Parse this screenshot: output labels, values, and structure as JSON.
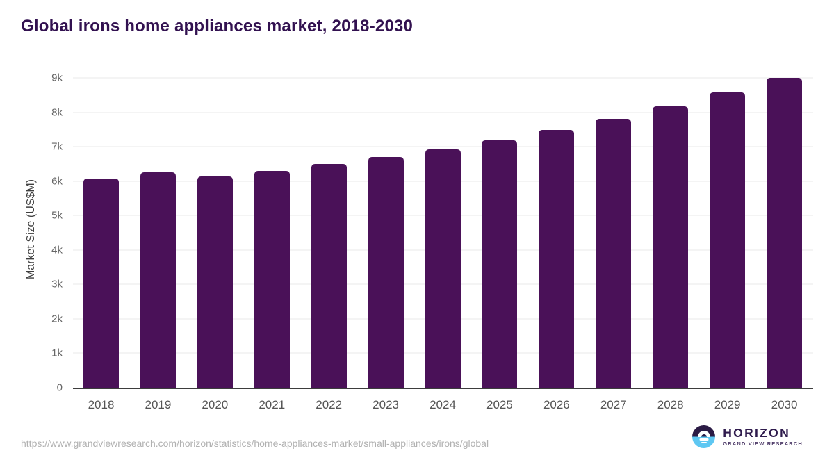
{
  "title": "Global irons home appliances market, 2018-2030",
  "chart_data": {
    "type": "bar",
    "title": "Global irons home appliances market, 2018-2030",
    "categories": [
      "2018",
      "2019",
      "2020",
      "2021",
      "2022",
      "2023",
      "2024",
      "2025",
      "2026",
      "2027",
      "2028",
      "2029",
      "2030"
    ],
    "values": [
      6070,
      6250,
      6130,
      6300,
      6490,
      6690,
      6920,
      7190,
      7480,
      7810,
      8170,
      8570,
      9000
    ],
    "xlabel": "",
    "ylabel": "Market Size (US$M)",
    "ylim": [
      0,
      9000
    ],
    "ytick_step": 1000,
    "ytick_labels": [
      "0",
      "1k",
      "2k",
      "3k",
      "4k",
      "5k",
      "6k",
      "7k",
      "8k",
      "9k"
    ],
    "grid": true,
    "legend": false,
    "bar_color": "#4a1158",
    "gridline_color": "#e8e8e8",
    "axis_line_color": "#3d3d3d"
  },
  "colors": {
    "title": "#321150",
    "bar": "#4a1158",
    "logo_dark": "#2b1b45",
    "logo_blue": "#5ec7f2",
    "url_text": "#b1b1b1"
  },
  "footer": {
    "source_url": "https://www.grandviewresearch.com/horizon/statistics/home-appliances-market/small-appliances/irons/global",
    "logo": {
      "name": "HORIZON",
      "subtitle": "GRAND VIEW RESEARCH"
    }
  }
}
